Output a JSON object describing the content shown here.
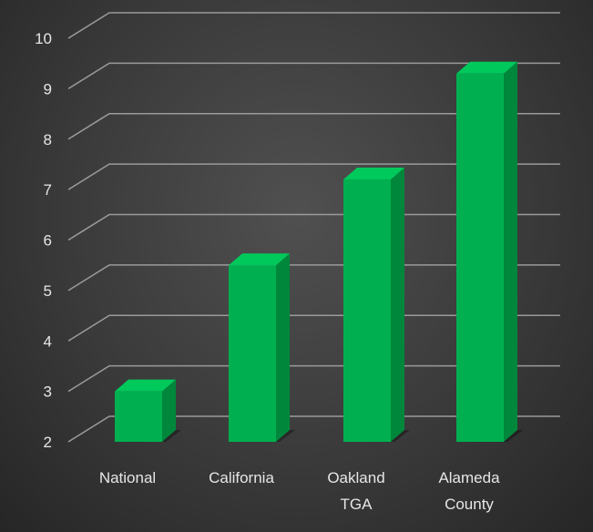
{
  "chart_data": {
    "type": "bar",
    "style": "3d-column",
    "title": "",
    "xlabel": "",
    "ylabel": "",
    "categories": [
      [
        "National"
      ],
      [
        "California"
      ],
      [
        "Oakland",
        "TGA"
      ],
      [
        "Alameda",
        "County"
      ]
    ],
    "values": [
      3.0,
      5.5,
      7.2,
      9.3
    ],
    "ylim": [
      2,
      10
    ],
    "yticks": [
      2,
      3,
      4,
      5,
      6,
      7,
      8,
      9,
      10
    ],
    "grid": true,
    "legend": "none",
    "colors": {
      "bar_front": "#00b050",
      "bar_side": "#00873c",
      "bar_top": "#00c95b",
      "grid": "#9a9a9a",
      "text": "#e6e6e6",
      "background": "#3c3c3c"
    }
  }
}
